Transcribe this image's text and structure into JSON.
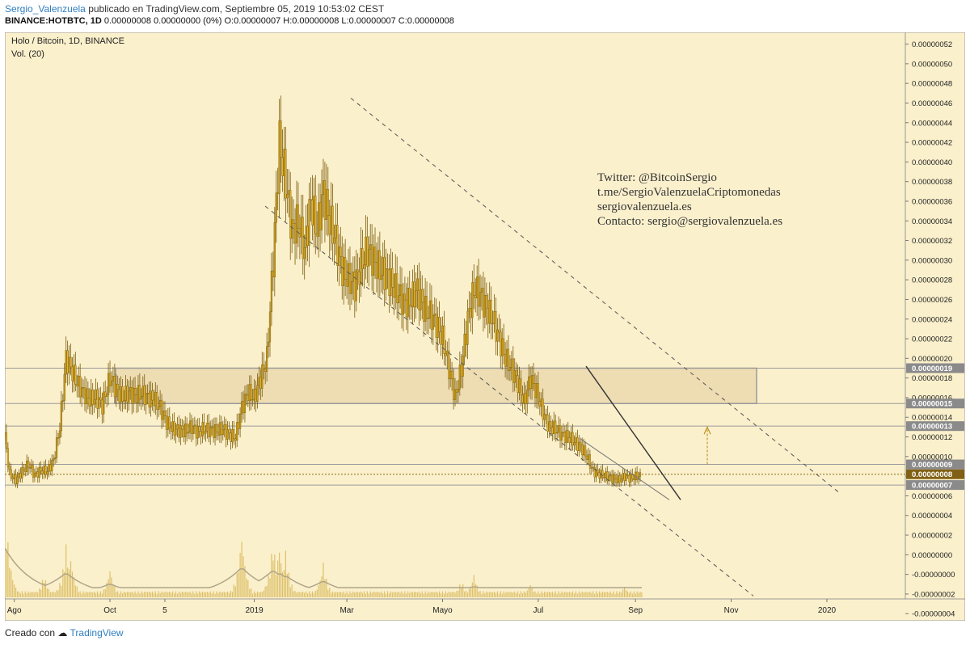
{
  "header": {
    "username": "Sergio_Valenzuela",
    "published_text": "publicado en TradingView.com, Septiembre 05, 2019 10:53:02 CEST",
    "symbol_line": "BINANCE:HOTBTC, 1D",
    "ohlc_line": "0.00000008 0.00000000 (0%) O:0.00000007 H:0.00000008 L:0.00000007 C:0.00000008"
  },
  "legend": {
    "title": "Holo / Bitcoin, 1D, BINANCE",
    "volume": "Vol. (20)"
  },
  "watermark": {
    "lines": [
      "Twitter: @BitcoinSergio",
      "t.me/SergioValenzuelaCriptomonedas",
      "sergiovalenzuela.es",
      "Contacto: sergio@sergiovalenzuela.es"
    ]
  },
  "footer": {
    "created_with": "Creado con",
    "brand": "TradingView"
  },
  "colors": {
    "background": "#fbf0cc",
    "candle": "#c79a18",
    "candle_dark": "#7a5c0c",
    "volume": "#ddc06a",
    "zone_fill": "#eeddb3",
    "label_gray": "#8a8a8a",
    "label_price": "#806015",
    "line": "#555555"
  },
  "chart_data": {
    "type": "candlestick",
    "title": "Holo / Bitcoin, 1D, BINANCE",
    "x_tick_labels": [
      "Ago",
      "Oct",
      "5",
      "2019",
      "Mar",
      "Mayo",
      "Jul",
      "Sep",
      "Nov",
      "2020"
    ],
    "x_tick_dates": [
      "2018-08-01",
      "2018-10-01",
      "2018-11-05",
      "2019-01-01",
      "2019-03-01",
      "2019-05-01",
      "2019-07-01",
      "2019-09-01",
      "2019-11-01",
      "2020-01-01"
    ],
    "y_axis_labels": [
      "0.00000052",
      "0.00000050",
      "0.00000048",
      "0.00000046",
      "0.00000044",
      "0.00000042",
      "0.00000040",
      "0.00000038",
      "0.00000036",
      "0.00000034",
      "0.00000032",
      "0.00000030",
      "0.00000028",
      "0.00000026",
      "0.00000024",
      "0.00000022",
      "0.00000020",
      "0.00000018",
      "0.00000016",
      "0.00000014",
      "0.00000012",
      "0.00000010",
      "0.00000008",
      "0.00000006",
      "0.00000004",
      "0.00000002",
      "0.00000000",
      "-0.00000000",
      "-0.00000002",
      "-0.00000004"
    ],
    "price_labels": [
      {
        "text": "0.00000019",
        "value": 1.9e-07,
        "style": "gray"
      },
      {
        "text": "0.00000015",
        "value": 1.54e-07,
        "style": "gray"
      },
      {
        "text": "0.00000013",
        "value": 1.31e-07,
        "style": "gray"
      },
      {
        "text": "0.00000009",
        "value": 9.2e-08,
        "style": "gray"
      },
      {
        "text": "0.00000008",
        "value": 8.2e-08,
        "style": "price"
      },
      {
        "text": "0.00000007",
        "value": 7.1e-08,
        "style": "gray"
      }
    ],
    "series": [
      {
        "close": [
          {
            "date": "2018-07-26",
            "value": 1.2e-07
          },
          {
            "date": "2018-07-29",
            "value": 8.2e-08
          },
          {
            "date": "2018-08-02",
            "value": 7.6e-08
          },
          {
            "date": "2018-08-06",
            "value": 8.5e-08
          },
          {
            "date": "2018-08-10",
            "value": 9.2e-08
          },
          {
            "date": "2018-08-14",
            "value": 8.1e-08
          },
          {
            "date": "2018-08-18",
            "value": 8.6e-08
          },
          {
            "date": "2018-08-22",
            "value": 8.5e-08
          },
          {
            "date": "2018-08-26",
            "value": 9.6e-08
          },
          {
            "date": "2018-08-30",
            "value": 1.3e-07
          },
          {
            "date": "2018-09-03",
            "value": 2e-07
          },
          {
            "date": "2018-09-06",
            "value": 1.9e-07
          },
          {
            "date": "2018-09-10",
            "value": 1.75e-07
          },
          {
            "date": "2018-09-14",
            "value": 1.65e-07
          },
          {
            "date": "2018-09-18",
            "value": 1.58e-07
          },
          {
            "date": "2018-09-22",
            "value": 1.6e-07
          },
          {
            "date": "2018-09-26",
            "value": 1.52e-07
          },
          {
            "date": "2018-10-01",
            "value": 1.8e-07
          },
          {
            "date": "2018-10-05",
            "value": 1.68e-07
          },
          {
            "date": "2018-10-09",
            "value": 1.6e-07
          },
          {
            "date": "2018-10-13",
            "value": 1.65e-07
          },
          {
            "date": "2018-10-17",
            "value": 1.62e-07
          },
          {
            "date": "2018-10-21",
            "value": 1.64e-07
          },
          {
            "date": "2018-10-25",
            "value": 1.6e-07
          },
          {
            "date": "2018-10-29",
            "value": 1.58e-07
          },
          {
            "date": "2018-11-02",
            "value": 1.5e-07
          },
          {
            "date": "2018-11-06",
            "value": 1.35e-07
          },
          {
            "date": "2018-11-10",
            "value": 1.28e-07
          },
          {
            "date": "2018-11-14",
            "value": 1.27e-07
          },
          {
            "date": "2018-11-18",
            "value": 1.26e-07
          },
          {
            "date": "2018-11-22",
            "value": 1.3e-07
          },
          {
            "date": "2018-11-26",
            "value": 1.25e-07
          },
          {
            "date": "2018-11-30",
            "value": 1.28e-07
          },
          {
            "date": "2018-12-04",
            "value": 1.27e-07
          },
          {
            "date": "2018-12-08",
            "value": 1.26e-07
          },
          {
            "date": "2018-12-12",
            "value": 1.28e-07
          },
          {
            "date": "2018-12-16",
            "value": 1.22e-07
          },
          {
            "date": "2018-12-20",
            "value": 1.2e-07
          },
          {
            "date": "2018-12-24",
            "value": 1.5e-07
          },
          {
            "date": "2018-12-28",
            "value": 1.65e-07
          },
          {
            "date": "2019-01-01",
            "value": 1.6e-07
          },
          {
            "date": "2019-01-05",
            "value": 1.8e-07
          },
          {
            "date": "2019-01-09",
            "value": 2e-07
          },
          {
            "date": "2019-01-13",
            "value": 3e-07
          },
          {
            "date": "2019-01-17",
            "value": 4.2e-07
          },
          {
            "date": "2019-01-21",
            "value": 3.8e-07
          },
          {
            "date": "2019-01-25",
            "value": 3.3e-07
          },
          {
            "date": "2019-01-29",
            "value": 3.4e-07
          },
          {
            "date": "2019-02-02",
            "value": 3.1e-07
          },
          {
            "date": "2019-02-06",
            "value": 3.6e-07
          },
          {
            "date": "2019-02-10",
            "value": 3.3e-07
          },
          {
            "date": "2019-02-14",
            "value": 3.7e-07
          },
          {
            "date": "2019-02-18",
            "value": 3.4e-07
          },
          {
            "date": "2019-02-22",
            "value": 3.2e-07
          },
          {
            "date": "2019-02-26",
            "value": 2.9e-07
          },
          {
            "date": "2019-03-02",
            "value": 2.8e-07
          },
          {
            "date": "2019-03-06",
            "value": 2.75e-07
          },
          {
            "date": "2019-03-10",
            "value": 2.95e-07
          },
          {
            "date": "2019-03-14",
            "value": 3.1e-07
          },
          {
            "date": "2019-03-18",
            "value": 3e-07
          },
          {
            "date": "2019-03-22",
            "value": 2.9e-07
          },
          {
            "date": "2019-03-26",
            "value": 2.85e-07
          },
          {
            "date": "2019-03-30",
            "value": 2.75e-07
          },
          {
            "date": "2019-04-03",
            "value": 2.65e-07
          },
          {
            "date": "2019-04-07",
            "value": 2.55e-07
          },
          {
            "date": "2019-04-11",
            "value": 2.6e-07
          },
          {
            "date": "2019-04-15",
            "value": 2.7e-07
          },
          {
            "date": "2019-04-19",
            "value": 2.5e-07
          },
          {
            "date": "2019-04-23",
            "value": 2.45e-07
          },
          {
            "date": "2019-04-27",
            "value": 2.35e-07
          },
          {
            "date": "2019-05-01",
            "value": 2.2e-07
          },
          {
            "date": "2019-05-05",
            "value": 1.9e-07
          },
          {
            "date": "2019-05-09",
            "value": 1.6e-07
          },
          {
            "date": "2019-05-13",
            "value": 1.9e-07
          },
          {
            "date": "2019-05-17",
            "value": 2.4e-07
          },
          {
            "date": "2019-05-21",
            "value": 2.7e-07
          },
          {
            "date": "2019-05-25",
            "value": 2.65e-07
          },
          {
            "date": "2019-05-29",
            "value": 2.5e-07
          },
          {
            "date": "2019-06-02",
            "value": 2.4e-07
          },
          {
            "date": "2019-06-06",
            "value": 2.2e-07
          },
          {
            "date": "2019-06-10",
            "value": 2e-07
          },
          {
            "date": "2019-06-14",
            "value": 1.9e-07
          },
          {
            "date": "2019-06-18",
            "value": 1.75e-07
          },
          {
            "date": "2019-06-22",
            "value": 1.55e-07
          },
          {
            "date": "2019-06-26",
            "value": 1.8e-07
          },
          {
            "date": "2019-06-30",
            "value": 1.65e-07
          },
          {
            "date": "2019-07-04",
            "value": 1.45e-07
          },
          {
            "date": "2019-07-08",
            "value": 1.3e-07
          },
          {
            "date": "2019-07-12",
            "value": 1.28e-07
          },
          {
            "date": "2019-07-16",
            "value": 1.22e-07
          },
          {
            "date": "2019-07-20",
            "value": 1.2e-07
          },
          {
            "date": "2019-07-24",
            "value": 1.15e-07
          },
          {
            "date": "2019-07-28",
            "value": 1.1e-07
          },
          {
            "date": "2019-08-01",
            "value": 1e-07
          },
          {
            "date": "2019-08-05",
            "value": 8.5e-08
          },
          {
            "date": "2019-08-09",
            "value": 8.2e-08
          },
          {
            "date": "2019-08-13",
            "value": 8e-08
          },
          {
            "date": "2019-08-17",
            "value": 7.8e-08
          },
          {
            "date": "2019-08-21",
            "value": 7.6e-08
          },
          {
            "date": "2019-08-25",
            "value": 8e-08
          },
          {
            "date": "2019-08-29",
            "value": 7.8e-08
          },
          {
            "date": "2019-09-02",
            "value": 8e-08
          },
          {
            "date": "2019-09-05",
            "value": 8e-08
          }
        ]
      }
    ],
    "volume_peaks": [
      {
        "date": "2018-07-26",
        "value": 0.9
      },
      {
        "date": "2018-08-20",
        "value": 0.2
      },
      {
        "date": "2018-09-03",
        "value": 0.45
      },
      {
        "date": "2018-09-06",
        "value": 0.35
      },
      {
        "date": "2018-10-01",
        "value": 0.25
      },
      {
        "date": "2018-12-24",
        "value": 0.55
      },
      {
        "date": "2019-01-13",
        "value": 0.5
      },
      {
        "date": "2019-01-17",
        "value": 0.45
      },
      {
        "date": "2019-01-21",
        "value": 0.4
      },
      {
        "date": "2019-02-14",
        "value": 0.3
      },
      {
        "date": "2019-05-13",
        "value": 0.15
      },
      {
        "date": "2019-05-21",
        "value": 0.2
      },
      {
        "date": "2019-06-26",
        "value": 0.12
      },
      {
        "date": "2019-08-25",
        "value": 0.1
      }
    ],
    "y_range": [
      -4.5e-08,
      5.32e-07
    ],
    "x_range": [
      "2018-07-26",
      "2020-02-20"
    ],
    "grid": false,
    "volume_ma_label": "Vol. (20)"
  }
}
